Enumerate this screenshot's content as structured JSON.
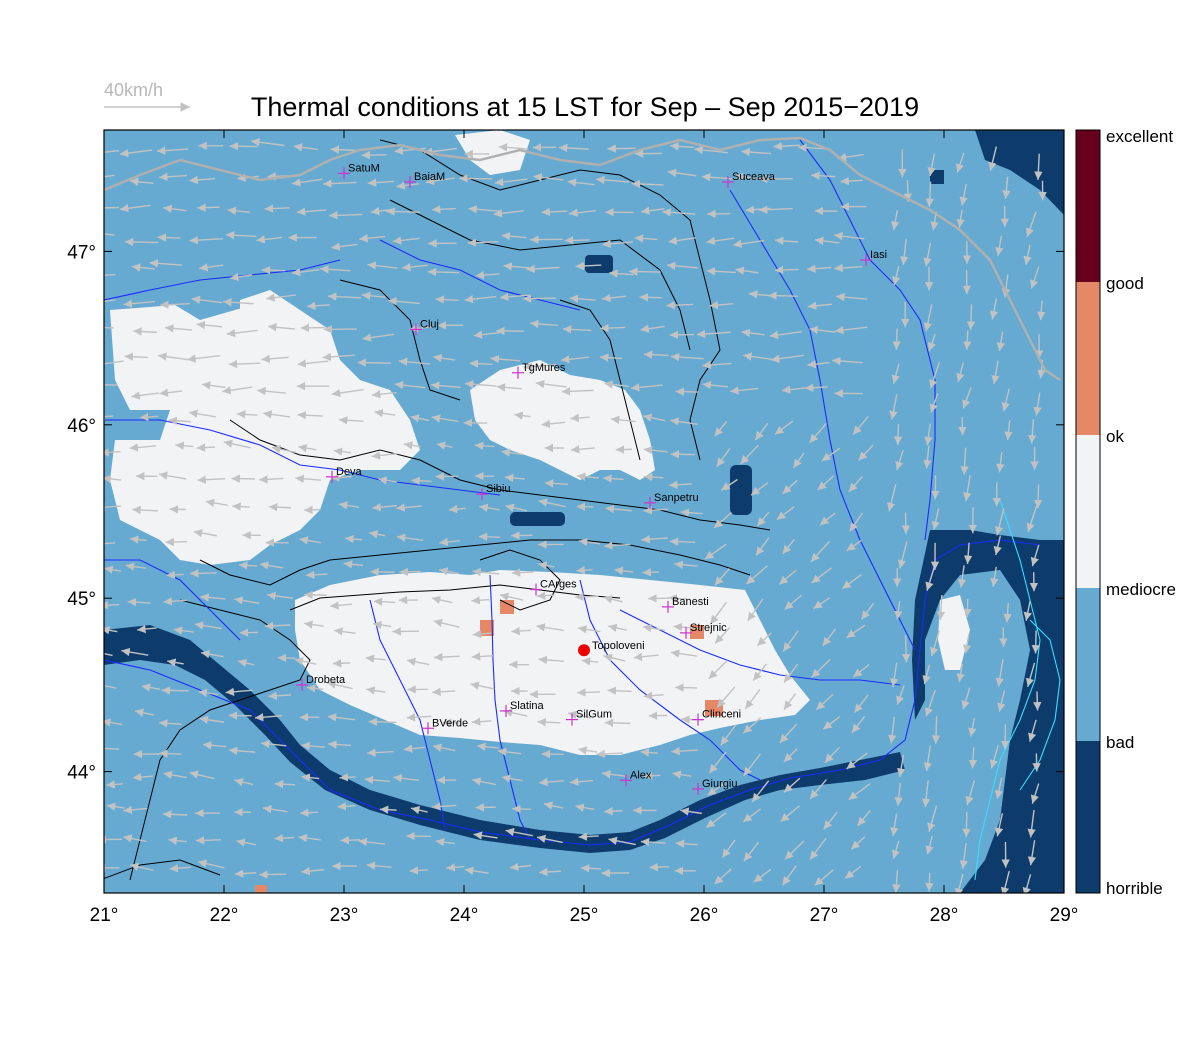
{
  "title": "Thermal conditions at 15 LST for Sep – Sep  2015−2019",
  "wind_reference": {
    "label": "40km/h"
  },
  "map": {
    "lon_range": [
      21,
      29
    ],
    "lat_range": [
      43.3,
      47.7
    ],
    "lon_ticks": [
      {
        "value": 21,
        "label": "21°"
      },
      {
        "value": 22,
        "label": "22°"
      },
      {
        "value": 23,
        "label": "23°"
      },
      {
        "value": 24,
        "label": "24°"
      },
      {
        "value": 25,
        "label": "25°"
      },
      {
        "value": 26,
        "label": "26°"
      },
      {
        "value": 27,
        "label": "27°"
      },
      {
        "value": 28,
        "label": "28°"
      },
      {
        "value": 29,
        "label": "29°"
      }
    ],
    "lat_ticks": [
      {
        "value": 47,
        "label": "47°"
      },
      {
        "value": 46,
        "label": "46°"
      },
      {
        "value": 45,
        "label": "45°"
      },
      {
        "value": 44,
        "label": "44°"
      }
    ],
    "cities": [
      {
        "name": "SatuM",
        "lon": 23.0,
        "lat": 47.45
      },
      {
        "name": "BaiaM",
        "lon": 23.55,
        "lat": 47.4
      },
      {
        "name": "Suceava",
        "lon": 26.2,
        "lat": 47.4
      },
      {
        "name": "Iasi",
        "lon": 27.35,
        "lat": 46.95
      },
      {
        "name": "Cluj",
        "lon": 23.6,
        "lat": 46.55
      },
      {
        "name": "TgMures",
        "lon": 24.45,
        "lat": 46.3
      },
      {
        "name": "Deva",
        "lon": 22.9,
        "lat": 45.7
      },
      {
        "name": "Sibiu",
        "lon": 24.15,
        "lat": 45.6
      },
      {
        "name": "Sanpetru",
        "lon": 25.55,
        "lat": 45.55
      },
      {
        "name": "CArges",
        "lon": 24.6,
        "lat": 45.05
      },
      {
        "name": "Banesti",
        "lon": 25.7,
        "lat": 44.95
      },
      {
        "name": "Strejnic",
        "lon": 25.85,
        "lat": 44.8
      },
      {
        "name": "Drobeta",
        "lon": 22.65,
        "lat": 44.5
      },
      {
        "name": "Slatina",
        "lon": 24.35,
        "lat": 44.35
      },
      {
        "name": "SilGum",
        "lon": 24.9,
        "lat": 44.3
      },
      {
        "name": "Clinceni",
        "lon": 25.95,
        "lat": 44.3
      },
      {
        "name": "BVerde",
        "lon": 23.7,
        "lat": 44.25
      },
      {
        "name": "Alex",
        "lon": 25.35,
        "lat": 43.95
      },
      {
        "name": "Giurgiu",
        "lon": 25.95,
        "lat": 43.9
      }
    ],
    "marked_point": {
      "name": "Topoloveni",
      "lon": 25.0,
      "lat": 44.7
    }
  },
  "legend": {
    "levels": [
      {
        "label": "excellent",
        "color": "#67001f"
      },
      {
        "label": "good",
        "color": "#e48868"
      },
      {
        "label": "ok",
        "color": "#f2f3f5"
      },
      {
        "label": "mediocre",
        "color": "#66aad1"
      },
      {
        "label": "bad",
        "color": "#0d3b6c"
      },
      {
        "label": "horrible",
        "color": "#0d3b6c"
      }
    ]
  },
  "colors": {
    "bad": "#66aad1",
    "horrible": "#0d3b6c",
    "mediocre_ok": "#f2f3f5",
    "ok_good": "#e48868",
    "excellent": "#67001f",
    "river": "#1a2cff",
    "city_marker": "#cc33cc",
    "wind_arrow": "#c2c2c2",
    "coast": "#33e0ff",
    "point": "#ee0000"
  }
}
